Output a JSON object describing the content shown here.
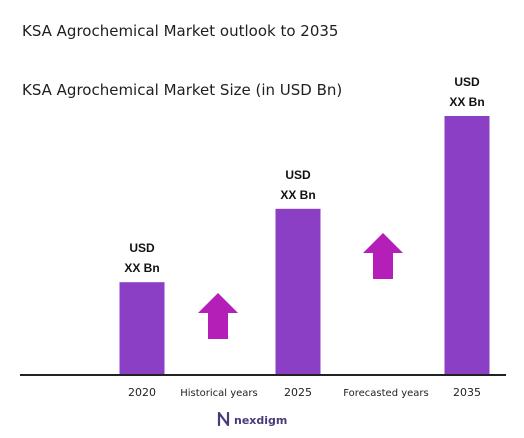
{
  "chart_data": {
    "type": "bar",
    "title": "KSA Agrochemical Market outlook to 2035",
    "subtitle": "KSA Agrochemical Market Size (in USD Bn)",
    "categories": [
      "2020",
      "2025",
      "2035"
    ],
    "values": [
      0.43,
      0.77,
      1.2
    ],
    "data_labels": [
      {
        "line1": "USD",
        "line2": "XX Bn"
      },
      {
        "line1": "USD",
        "line2": "XX Bn"
      },
      {
        "line1": "USD",
        "line2": "XX Bn"
      }
    ],
    "ylim": [
      0,
      1.2
    ],
    "grid": false,
    "legend": "none",
    "period_labels": [
      "Historical years",
      "Forecasted years"
    ],
    "bar_color": "#8b3fc4",
    "arrow_color": "#b41fb8",
    "axis_color": "#222222"
  },
  "brand": {
    "name": "nexdigm",
    "color": "#4a3a7a"
  }
}
